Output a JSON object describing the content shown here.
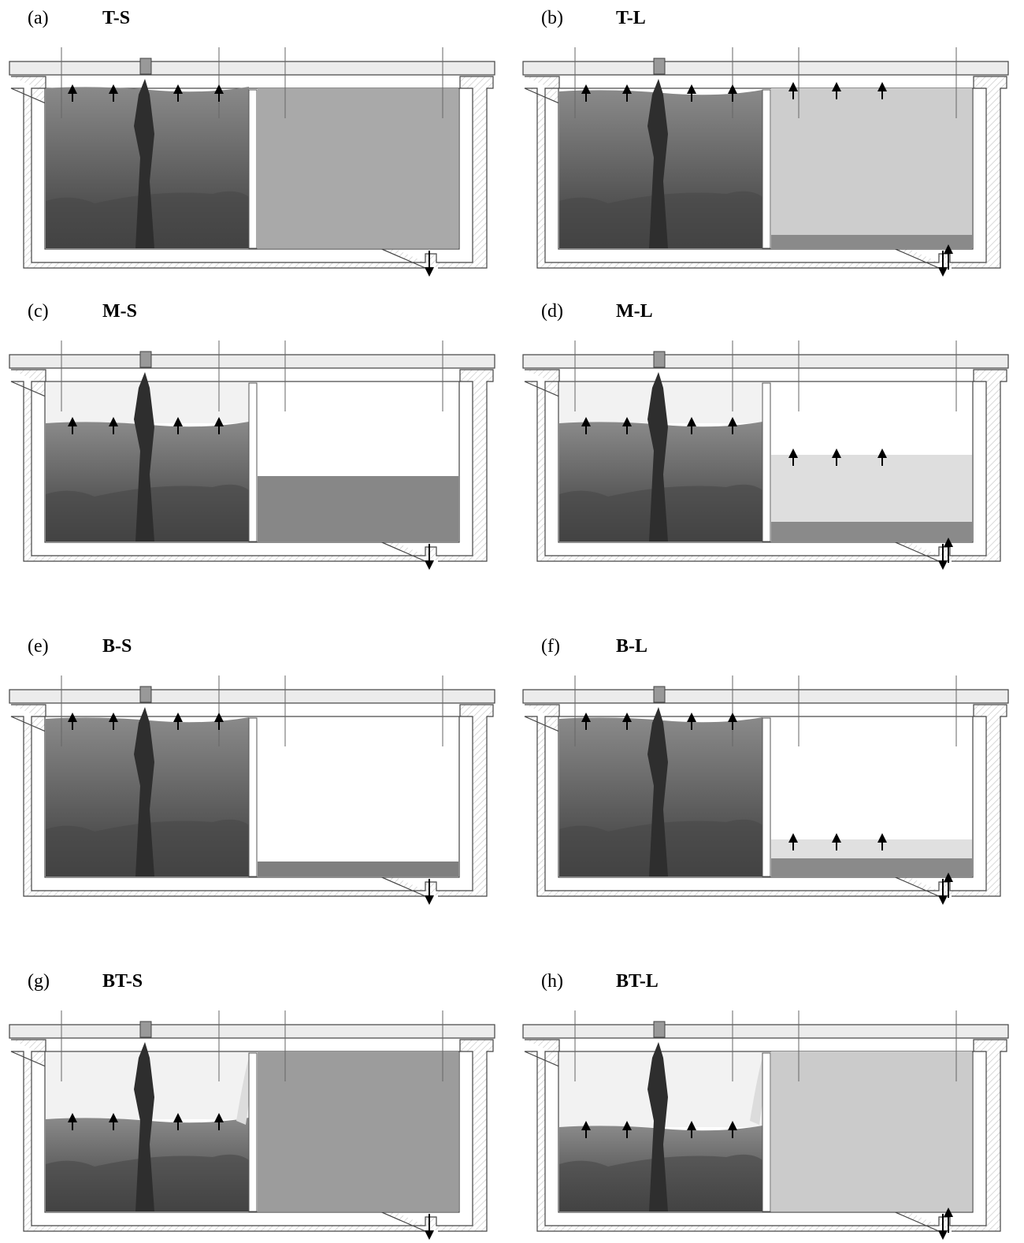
{
  "panels": [
    {
      "label": "(a)",
      "title": "T-S"
    },
    {
      "label": "(b)",
      "title": "T-L"
    },
    {
      "label": "(c)",
      "title": "M-S"
    },
    {
      "label": "(d)",
      "title": "M-L"
    },
    {
      "label": "(e)",
      "title": "B-S"
    },
    {
      "label": "(f)",
      "title": "B-L"
    },
    {
      "label": "(g)",
      "title": "BT-S"
    },
    {
      "label": "(h)",
      "title": "BT-L"
    }
  ]
}
